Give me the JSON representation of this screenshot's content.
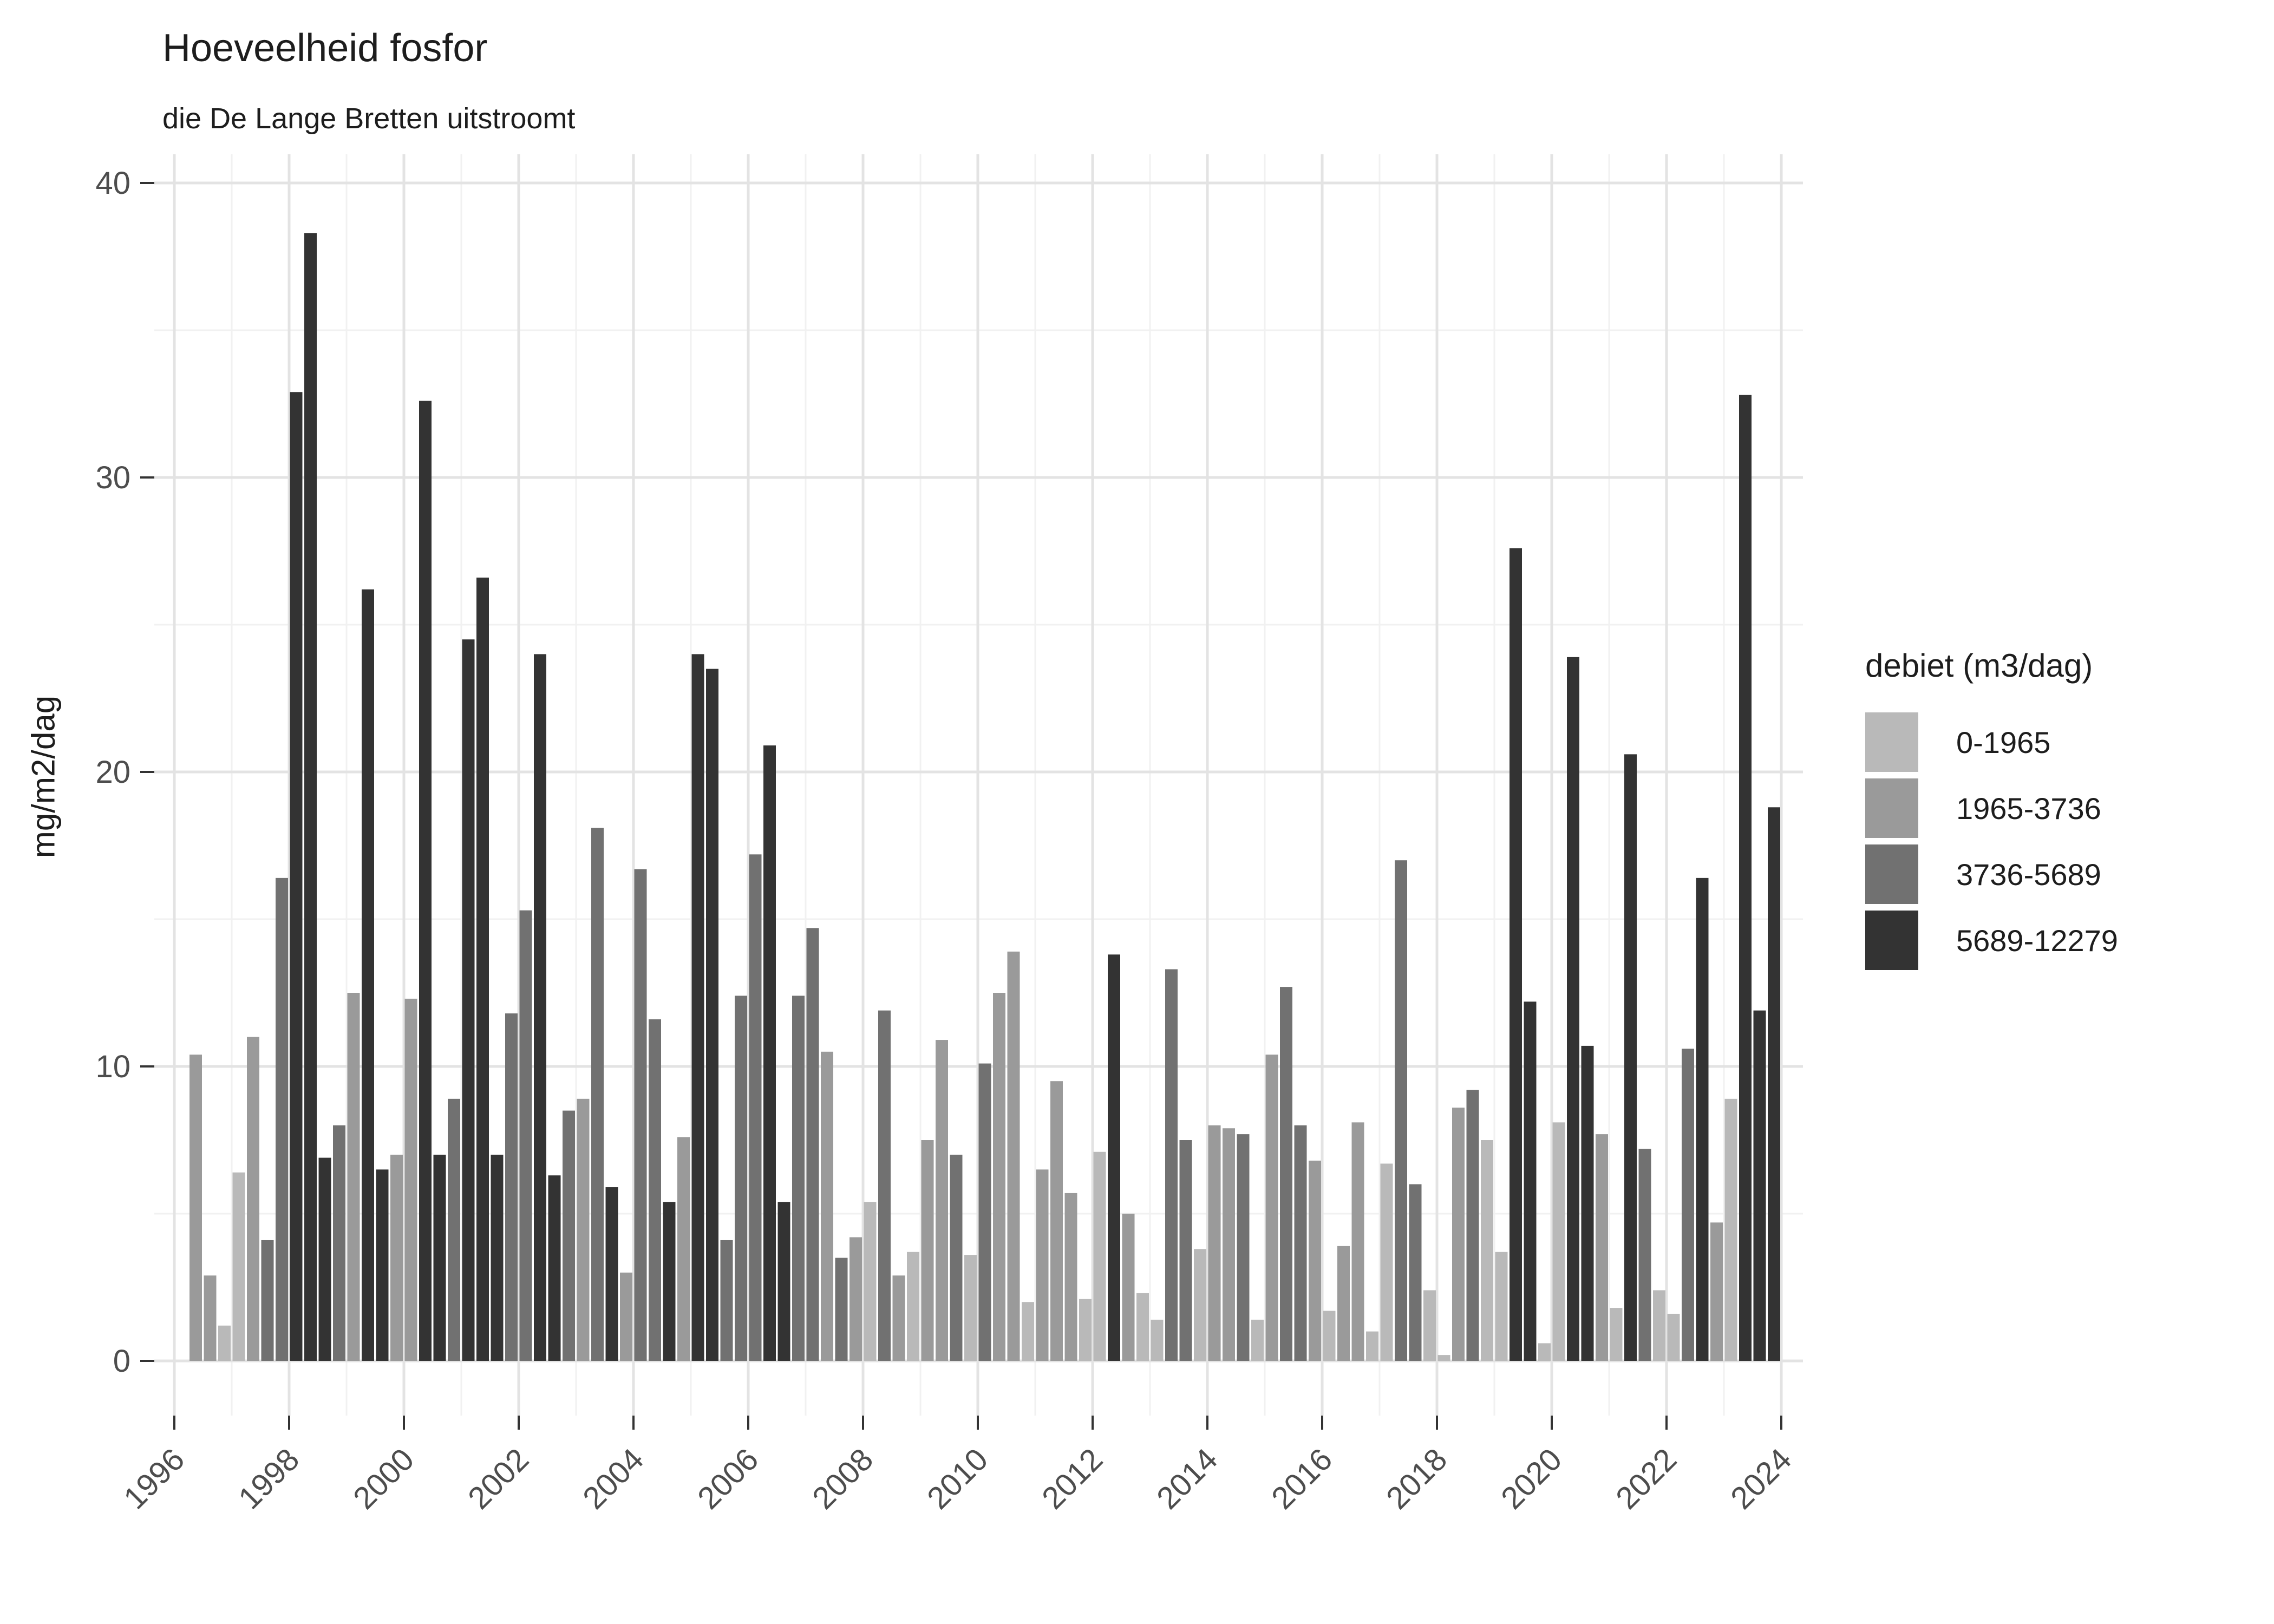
{
  "title": "Hoeveelheid fosfor",
  "subtitle": "die De Lange Bretten uitstroomt",
  "y_axis": {
    "label": "mg/m2/dag",
    "ticks": [
      0,
      10,
      20,
      30,
      40
    ]
  },
  "x_axis": {
    "ticks": [
      1996,
      1998,
      2000,
      2002,
      2004,
      2006,
      2008,
      2010,
      2012,
      2014,
      2016,
      2018,
      2020,
      2022,
      2024
    ]
  },
  "legend": {
    "title": "debiet (m3/dag)",
    "entries": [
      {
        "label": "0-1965",
        "color": "#b9b9b9"
      },
      {
        "label": "1965-3736",
        "color": "#9a9a9a"
      },
      {
        "label": "3736-5689",
        "color": "#717171"
      },
      {
        "label": "5689-12279",
        "color": "#333333"
      }
    ]
  },
  "chart_data": {
    "type": "bar",
    "title": "Hoeveelheid fosfor",
    "subtitle": "die De Lange Bretten uitstroomt",
    "xlabel": "",
    "ylabel": "mg/m2/dag",
    "ylim": [
      0,
      40
    ],
    "x_tick_years": [
      1996,
      1998,
      2000,
      2002,
      2004,
      2006,
      2008,
      2010,
      2012,
      2014,
      2016,
      2018,
      2020,
      2022,
      2024
    ],
    "grid": "on",
    "legend_position": "right",
    "legend_title": "debiet (m3/dag)",
    "debiet_buckets": [
      "0-1965",
      "1965-3736",
      "3736-5689",
      "5689-12279"
    ],
    "bars_columns": [
      "year",
      "quarter",
      "value_mg_m2_dag",
      "debiet_bucket_index"
    ],
    "bars": [
      [
        1996,
        2,
        10.4,
        1
      ],
      [
        1996,
        3,
        2.9,
        1
      ],
      [
        1996,
        4,
        1.2,
        0
      ],
      [
        1997,
        1,
        6.4,
        0
      ],
      [
        1997,
        2,
        11.0,
        1
      ],
      [
        1997,
        3,
        4.1,
        2
      ],
      [
        1997,
        4,
        16.4,
        2
      ],
      [
        1998,
        1,
        32.9,
        3
      ],
      [
        1998,
        2,
        38.3,
        3
      ],
      [
        1998,
        3,
        6.9,
        3
      ],
      [
        1998,
        4,
        8.0,
        2
      ],
      [
        1999,
        1,
        12.5,
        1
      ],
      [
        1999,
        2,
        26.2,
        3
      ],
      [
        1999,
        3,
        6.5,
        3
      ],
      [
        1999,
        4,
        7.0,
        1
      ],
      [
        2000,
        1,
        12.3,
        1
      ],
      [
        2000,
        2,
        32.6,
        3
      ],
      [
        2000,
        3,
        7.0,
        3
      ],
      [
        2000,
        4,
        8.9,
        2
      ],
      [
        2001,
        1,
        24.5,
        3
      ],
      [
        2001,
        2,
        26.6,
        3
      ],
      [
        2001,
        3,
        7.0,
        3
      ],
      [
        2001,
        4,
        11.8,
        2
      ],
      [
        2002,
        1,
        15.3,
        2
      ],
      [
        2002,
        2,
        24.0,
        3
      ],
      [
        2002,
        3,
        6.3,
        3
      ],
      [
        2002,
        4,
        8.5,
        2
      ],
      [
        2003,
        1,
        8.9,
        1
      ],
      [
        2003,
        2,
        18.1,
        2
      ],
      [
        2003,
        3,
        5.9,
        3
      ],
      [
        2003,
        4,
        3.0,
        1
      ],
      [
        2004,
        1,
        16.7,
        2
      ],
      [
        2004,
        2,
        11.6,
        2
      ],
      [
        2004,
        3,
        5.4,
        3
      ],
      [
        2004,
        4,
        7.6,
        1
      ],
      [
        2005,
        1,
        24.0,
        3
      ],
      [
        2005,
        2,
        23.5,
        3
      ],
      [
        2005,
        3,
        4.1,
        2
      ],
      [
        2005,
        4,
        12.4,
        2
      ],
      [
        2006,
        1,
        17.2,
        2
      ],
      [
        2006,
        2,
        20.9,
        3
      ],
      [
        2006,
        3,
        5.4,
        3
      ],
      [
        2006,
        4,
        12.4,
        2
      ],
      [
        2007,
        1,
        14.7,
        2
      ],
      [
        2007,
        2,
        10.5,
        1
      ],
      [
        2007,
        3,
        3.5,
        2
      ],
      [
        2007,
        4,
        4.2,
        1
      ],
      [
        2008,
        1,
        5.4,
        0
      ],
      [
        2008,
        2,
        11.9,
        2
      ],
      [
        2008,
        3,
        2.9,
        1
      ],
      [
        2008,
        4,
        3.7,
        0
      ],
      [
        2009,
        1,
        7.5,
        1
      ],
      [
        2009,
        2,
        10.9,
        1
      ],
      [
        2009,
        3,
        7.0,
        2
      ],
      [
        2009,
        4,
        3.6,
        0
      ],
      [
        2010,
        1,
        10.1,
        2
      ],
      [
        2010,
        2,
        12.5,
        1
      ],
      [
        2010,
        3,
        13.9,
        1
      ],
      [
        2010,
        4,
        2.0,
        0
      ],
      [
        2011,
        1,
        6.5,
        1
      ],
      [
        2011,
        2,
        9.5,
        1
      ],
      [
        2011,
        3,
        5.7,
        1
      ],
      [
        2011,
        4,
        2.1,
        0
      ],
      [
        2012,
        1,
        7.1,
        0
      ],
      [
        2012,
        2,
        13.8,
        3
      ],
      [
        2012,
        3,
        5.0,
        1
      ],
      [
        2012,
        4,
        2.3,
        0
      ],
      [
        2013,
        1,
        1.4,
        0
      ],
      [
        2013,
        2,
        13.3,
        2
      ],
      [
        2013,
        3,
        7.5,
        2
      ],
      [
        2013,
        4,
        3.8,
        0
      ],
      [
        2014,
        1,
        8.0,
        1
      ],
      [
        2014,
        2,
        7.9,
        1
      ],
      [
        2014,
        3,
        7.7,
        2
      ],
      [
        2014,
        4,
        1.4,
        0
      ],
      [
        2015,
        1,
        10.4,
        1
      ],
      [
        2015,
        2,
        12.7,
        2
      ],
      [
        2015,
        3,
        8.0,
        2
      ],
      [
        2015,
        4,
        6.8,
        1
      ],
      [
        2016,
        1,
        1.7,
        0
      ],
      [
        2016,
        2,
        3.9,
        1
      ],
      [
        2016,
        3,
        8.1,
        1
      ],
      [
        2016,
        4,
        1.0,
        0
      ],
      [
        2017,
        1,
        6.7,
        0
      ],
      [
        2017,
        2,
        17.0,
        2
      ],
      [
        2017,
        3,
        6.0,
        2
      ],
      [
        2017,
        4,
        2.4,
        0
      ],
      [
        2018,
        1,
        0.2,
        0
      ],
      [
        2018,
        2,
        8.6,
        1
      ],
      [
        2018,
        3,
        9.2,
        2
      ],
      [
        2018,
        4,
        7.5,
        0
      ],
      [
        2019,
        1,
        3.7,
        0
      ],
      [
        2019,
        2,
        27.6,
        3
      ],
      [
        2019,
        3,
        12.2,
        3
      ],
      [
        2019,
        4,
        0.6,
        0
      ],
      [
        2020,
        1,
        8.1,
        0
      ],
      [
        2020,
        2,
        23.9,
        3
      ],
      [
        2020,
        3,
        10.7,
        3
      ],
      [
        2020,
        4,
        7.7,
        1
      ],
      [
        2021,
        1,
        1.8,
        0
      ],
      [
        2021,
        2,
        20.6,
        3
      ],
      [
        2021,
        3,
        7.2,
        2
      ],
      [
        2021,
        4,
        2.4,
        0
      ],
      [
        2022,
        1,
        1.6,
        0
      ],
      [
        2022,
        2,
        10.6,
        2
      ],
      [
        2022,
        3,
        16.4,
        3
      ],
      [
        2022,
        4,
        4.7,
        1
      ],
      [
        2023,
        1,
        8.9,
        0
      ],
      [
        2023,
        2,
        32.8,
        3
      ],
      [
        2023,
        3,
        11.9,
        3
      ],
      [
        2023,
        4,
        18.8,
        3
      ]
    ]
  },
  "style_colors": {
    "background": "#ffffff",
    "grid_major": "#e3e3e3",
    "grid_minor": "#f1f1f1",
    "tick_mark": "#333333",
    "axis_text": "#4d4d4d",
    "text": "#1d1d1d"
  }
}
